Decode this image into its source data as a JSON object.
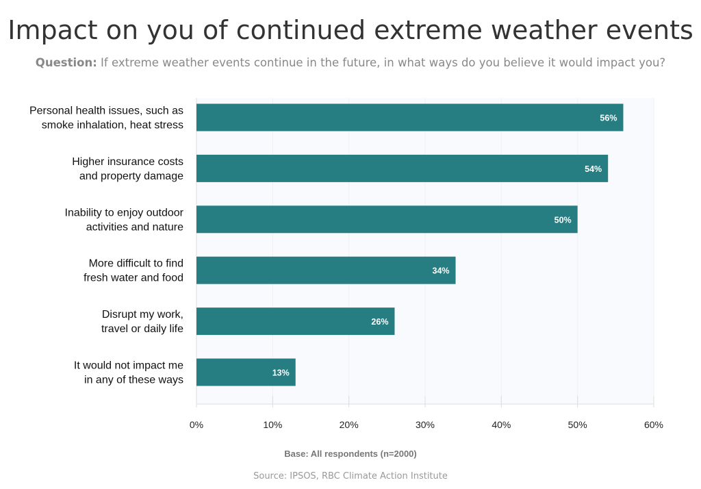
{
  "title": "Impact on you of continued extreme weather events",
  "subtitle": {
    "prefix": "Question:",
    "text": " If extreme weather events continue in the future, in what ways do you believe it would impact you?"
  },
  "footer": {
    "base": "Base: All respondents (n=2000)",
    "source": "Source: IPSOS, RBC Climate Action Institute"
  },
  "colors": {
    "bar": "#267e82",
    "plot_bg": "#f9fafd",
    "grid": "#eef0f4"
  },
  "chart_data": {
    "type": "bar",
    "orientation": "horizontal",
    "categories": [
      [
        "Personal health issues, such as",
        "smoke inhalation, heat stress"
      ],
      [
        "Higher insurance costs",
        "and property damage"
      ],
      [
        "Inability to enjoy outdoor",
        "activities and nature"
      ],
      [
        "More difficult to find",
        "fresh water and food"
      ],
      [
        "Disrupt my work,",
        "travel or daily life"
      ],
      [
        "It would not impact me",
        "in any of these ways"
      ]
    ],
    "values": [
      56,
      54,
      50,
      34,
      26,
      13
    ],
    "data_labels": [
      "56%",
      "54%",
      "50%",
      "34%",
      "26%",
      "13%"
    ],
    "xlim": [
      0,
      60
    ],
    "xticks": [
      0,
      10,
      20,
      30,
      40,
      50,
      60
    ],
    "xtick_labels": [
      "0%",
      "10%",
      "20%",
      "30%",
      "40%",
      "50%",
      "60%"
    ],
    "grid": true
  }
}
